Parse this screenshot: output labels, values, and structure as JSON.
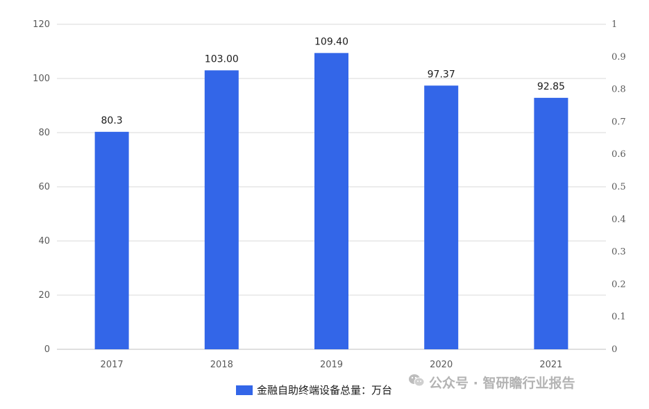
{
  "chart_data": {
    "type": "bar",
    "categories": [
      "2017",
      "2018",
      "2019",
      "2020",
      "2021"
    ],
    "series": [
      {
        "name": "金融自助终端设备总量：万台",
        "values": [
          80.3,
          103.0,
          109.4,
          97.37,
          92.85
        ],
        "labels": [
          "80.3",
          "103.00",
          "109.40",
          "97.37",
          "92.85"
        ]
      }
    ],
    "ylim": [
      0,
      120
    ],
    "yticks": [
      "0",
      "20",
      "40",
      "60",
      "80",
      "100",
      "120"
    ],
    "y2lim": [
      0,
      1
    ],
    "y2ticks": [
      "0",
      "0.1",
      "0.2",
      "0.3",
      "0.4",
      "0.5",
      "0.6",
      "0.7",
      "0.8",
      "0.9",
      "1"
    ],
    "grid": true,
    "legend_position": "bottom",
    "bar_color": "#3366e8"
  },
  "legend": {
    "label": "金融自助终端设备总量：万台"
  },
  "watermark": {
    "text": "公众号 · 智研瞻行业报告",
    "icon": "wechat-icon"
  }
}
